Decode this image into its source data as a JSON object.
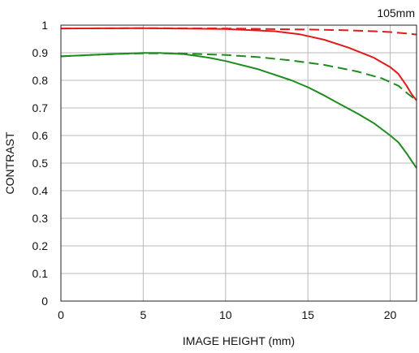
{
  "chart_data": {
    "type": "line",
    "corner_label": "105mm",
    "xlabel": "IMAGE HEIGHT (mm)",
    "ylabel": "CONTRAST",
    "xlim": [
      0,
      21.6
    ],
    "ylim": [
      0,
      1
    ],
    "grid": true,
    "x_ticks": [
      0,
      5,
      10,
      15,
      20
    ],
    "y_ticks": [
      0,
      0.1,
      0.2,
      0.3,
      0.4,
      0.5,
      0.6,
      0.7,
      0.8,
      0.9,
      1
    ],
    "y_tick_labels": [
      "0",
      "0.1",
      "0.2",
      "0.3",
      "0.4",
      "0.5",
      "0.6",
      "0.7",
      "0.8",
      "0.9",
      "1"
    ],
    "series": [
      {
        "color": "#e01b1b",
        "dash": "dashed",
        "points": [
          [
            0,
            0.988
          ],
          [
            5,
            0.989
          ],
          [
            10,
            0.988
          ],
          [
            15,
            0.984
          ],
          [
            17,
            0.982
          ],
          [
            19,
            0.978
          ],
          [
            20,
            0.975
          ],
          [
            21,
            0.97
          ],
          [
            21.6,
            0.966
          ]
        ]
      },
      {
        "color": "#e01b1b",
        "dash": "solid",
        "points": [
          [
            0,
            0.988
          ],
          [
            5,
            0.989
          ],
          [
            10,
            0.986
          ],
          [
            13,
            0.978
          ],
          [
            14.5,
            0.967
          ],
          [
            16,
            0.947
          ],
          [
            17.5,
            0.918
          ],
          [
            19,
            0.882
          ],
          [
            20,
            0.848
          ],
          [
            20.5,
            0.823
          ],
          [
            21,
            0.78
          ],
          [
            21.3,
            0.75
          ],
          [
            21.6,
            0.727
          ]
        ]
      },
      {
        "color": "#1e8c1e",
        "dash": "dashed",
        "points": [
          [
            0,
            0.887
          ],
          [
            3,
            0.895
          ],
          [
            5,
            0.898
          ],
          [
            7,
            0.898
          ],
          [
            10,
            0.892
          ],
          [
            12,
            0.884
          ],
          [
            14,
            0.872
          ],
          [
            16,
            0.856
          ],
          [
            18,
            0.832
          ],
          [
            19.5,
            0.807
          ],
          [
            20.5,
            0.78
          ],
          [
            21.1,
            0.75
          ],
          [
            21.6,
            0.727
          ]
        ]
      },
      {
        "color": "#1e8c1e",
        "dash": "solid",
        "points": [
          [
            0,
            0.887
          ],
          [
            3,
            0.895
          ],
          [
            5,
            0.899
          ],
          [
            6,
            0.899
          ],
          [
            7.5,
            0.895
          ],
          [
            9,
            0.882
          ],
          [
            10,
            0.87
          ],
          [
            12,
            0.84
          ],
          [
            14,
            0.8
          ],
          [
            15,
            0.775
          ],
          [
            16,
            0.745
          ],
          [
            17,
            0.712
          ],
          [
            18,
            0.68
          ],
          [
            19,
            0.645
          ],
          [
            20,
            0.6
          ],
          [
            20.5,
            0.575
          ],
          [
            21,
            0.535
          ],
          [
            21.3,
            0.508
          ],
          [
            21.6,
            0.482
          ]
        ]
      }
    ]
  }
}
